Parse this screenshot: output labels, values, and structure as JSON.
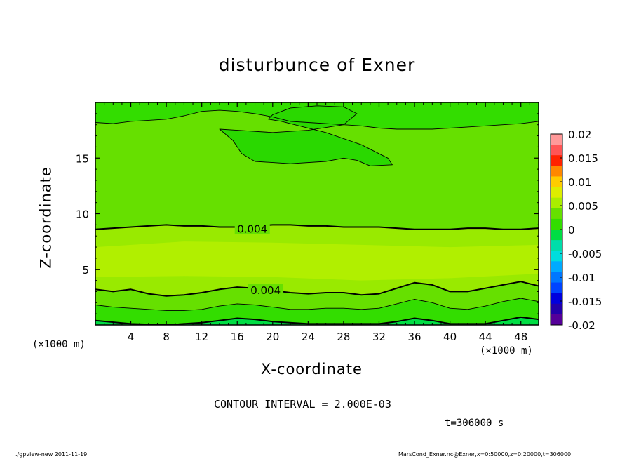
{
  "chart_data": {
    "type": "contour",
    "title": "disturbunce of Exner",
    "xlabel": "X-coordinate",
    "ylabel": "Z-coordinate",
    "x_unit": "(×1000 m)",
    "y_unit": "(×1000 m)",
    "xlim": [
      0,
      50
    ],
    "ylim": [
      0,
      20
    ],
    "x_ticks": [
      4,
      8,
      12,
      16,
      20,
      24,
      28,
      32,
      36,
      40,
      44,
      48
    ],
    "y_ticks": [
      5,
      10,
      15
    ],
    "colorbar": {
      "ticks": [
        "0.02",
        "0.015",
        "0.01",
        "0.005",
        "0",
        "-0.005",
        "-0.01",
        "-0.015",
        "-0.02"
      ],
      "colors": [
        "#ff9999",
        "#ff5555",
        "#ff2200",
        "#ff8800",
        "#ffcc00",
        "#ddee00",
        "#aaee00",
        "#66e000",
        "#33dd00",
        "#00dd44",
        "#00ddaa",
        "#00dddd",
        "#00aaff",
        "#0077ff",
        "#0044ff",
        "#0000dd",
        "#2200aa",
        "#550099"
      ]
    },
    "contour_interval": "CONTOUR INTERVAL = 2.000E-03",
    "contour_labels": [
      {
        "text": "0.004",
        "x": 17.7,
        "y": 8.6
      },
      {
        "text": "0.004",
        "x": 19.2,
        "y": 3.1
      }
    ],
    "contours": [
      {
        "level": 0.002,
        "weight": "thin",
        "x": [
          0,
          2,
          4,
          6,
          8,
          10,
          12,
          14,
          16,
          18,
          20,
          22,
          24,
          26,
          28,
          30,
          32,
          34,
          36,
          38,
          40,
          42,
          44,
          46,
          48,
          50
        ],
        "y": [
          18.2,
          18.1,
          18.3,
          18.4,
          18.5,
          18.8,
          19.2,
          19.3,
          19.2,
          19.0,
          18.7,
          18.3,
          18.2,
          18.1,
          18.0,
          17.9,
          17.7,
          17.6,
          17.6,
          17.6,
          17.7,
          17.8,
          17.9,
          18.0,
          18.1,
          18.3
        ]
      },
      {
        "level": 0.004,
        "weight": "bold",
        "x": [
          0,
          2,
          4,
          6,
          8,
          10,
          12,
          14,
          16,
          18,
          20,
          22,
          24,
          26,
          28,
          30,
          32,
          34,
          36,
          38,
          40,
          42,
          44,
          46,
          48,
          50
        ],
        "y": [
          8.6,
          8.7,
          8.8,
          8.9,
          9.0,
          8.9,
          8.9,
          8.8,
          8.8,
          8.9,
          9.0,
          9.0,
          8.9,
          8.9,
          8.8,
          8.8,
          8.8,
          8.7,
          8.6,
          8.6,
          8.6,
          8.7,
          8.7,
          8.6,
          8.6,
          8.7
        ]
      },
      {
        "level": 0.004,
        "weight": "bold",
        "x": [
          0,
          2,
          4,
          6,
          8,
          10,
          12,
          14,
          16,
          18,
          20,
          22,
          24,
          26,
          28,
          30,
          32,
          34,
          36,
          38,
          40,
          42,
          44,
          46,
          48,
          50
        ],
        "y": [
          3.2,
          3.0,
          3.2,
          2.8,
          2.6,
          2.7,
          2.9,
          3.2,
          3.4,
          3.3,
          3.1,
          2.9,
          2.8,
          2.9,
          2.9,
          2.7,
          2.8,
          3.3,
          3.8,
          3.6,
          3.0,
          3.0,
          3.3,
          3.6,
          3.9,
          3.5
        ]
      },
      {
        "level": 0.002,
        "weight": "thin",
        "x": [
          0,
          2,
          4,
          6,
          8,
          10,
          12,
          14,
          16,
          18,
          20,
          22,
          24,
          26,
          28,
          30,
          32,
          34,
          36,
          38,
          40,
          42,
          44,
          46,
          48,
          50
        ],
        "y": [
          1.8,
          1.6,
          1.5,
          1.4,
          1.3,
          1.3,
          1.4,
          1.7,
          1.9,
          1.8,
          1.6,
          1.4,
          1.4,
          1.5,
          1.5,
          1.4,
          1.5,
          1.9,
          2.3,
          2.0,
          1.5,
          1.4,
          1.7,
          2.1,
          2.4,
          2.1
        ]
      },
      {
        "level": 0.0,
        "weight": "bold",
        "x": [
          0,
          4,
          8,
          12,
          14,
          16,
          18,
          20,
          24,
          28,
          32,
          34,
          36,
          38,
          40,
          44,
          46,
          48,
          50
        ],
        "y": [
          0.4,
          0.1,
          0.0,
          0.2,
          0.4,
          0.6,
          0.5,
          0.3,
          0.1,
          0.1,
          0.1,
          0.3,
          0.6,
          0.4,
          0.1,
          0.1,
          0.4,
          0.7,
          0.5
        ]
      }
    ],
    "closed_contours": [
      {
        "level": 0.0,
        "weight": "thin",
        "x": [
          14.0,
          16.0,
          20.0,
          24.0,
          28.0,
          29.5,
          28.0,
          25.0,
          22.0,
          20.0,
          19.5,
          21.0,
          26.0,
          30.0,
          33.0,
          33.5,
          31.0,
          29.5,
          28.0,
          26.0,
          22.0,
          18.0,
          16.5,
          15.5,
          14.0
        ],
        "y": [
          17.6,
          17.5,
          17.3,
          17.5,
          18.0,
          19.0,
          19.6,
          19.7,
          19.5,
          18.9,
          18.5,
          18.3,
          17.3,
          16.2,
          15.0,
          14.4,
          14.3,
          14.8,
          15.0,
          14.7,
          14.5,
          14.7,
          15.4,
          16.6,
          17.6
        ]
      }
    ]
  },
  "labels": {
    "units_left": "(×1000 m)",
    "units_right": "(×1000 m)",
    "time": "t=306000 s",
    "footer_left": "./gpview-new   2011-11-19",
    "footer_right": "MarsCond_Exner.nc@Exner,x=0:50000,z=0:20000,t=306000"
  }
}
